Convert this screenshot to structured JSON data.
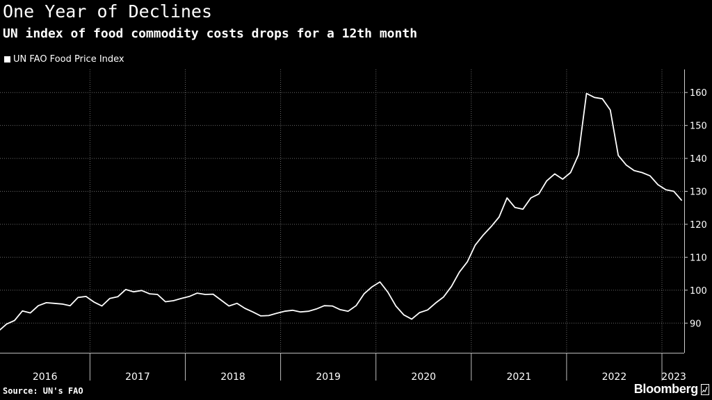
{
  "title": "One Year of Declines",
  "subtitle": "UN index of food commodity costs drops for a 12th month",
  "legend": {
    "label": "UN FAO Food Price Index",
    "color": "#ffffff"
  },
  "source": "Source: UN's FAO",
  "brand": "Bloomberg",
  "chart_data": {
    "type": "line",
    "title": "One Year of Declines",
    "subtitle": "UN index of food commodity costs drops for a 12th month",
    "xlabel": "",
    "ylabel": "",
    "yaxis_side": "right",
    "ylim": [
      81,
      167
    ],
    "yticks": [
      90,
      100,
      110,
      120,
      130,
      140,
      150,
      160
    ],
    "year_labels": [
      "2016",
      "2017",
      "2018",
      "2019",
      "2020",
      "2021",
      "2022",
      "2023"
    ],
    "start": "2016-01",
    "grid": true,
    "series": [
      {
        "name": "UN FAO Food Price Index",
        "color": "#ffffff",
        "values": [
          87.6,
          89.7,
          90.8,
          93.7,
          93.1,
          95.3,
          96.2,
          96.0,
          95.8,
          95.3,
          97.8,
          98.1,
          96.4,
          95.2,
          97.5,
          98.0,
          100.2,
          99.5,
          99.9,
          98.9,
          98.7,
          96.5,
          96.8,
          97.5,
          98.1,
          99.1,
          98.7,
          98.8,
          97.0,
          95.2,
          96.0,
          94.5,
          93.4,
          92.2,
          92.3,
          93.0,
          93.6,
          93.9,
          93.4,
          93.6,
          94.3,
          95.3,
          95.2,
          94.1,
          93.6,
          95.3,
          98.9,
          101.0,
          102.5,
          99.4,
          95.2,
          92.5,
          91.2,
          93.2,
          94.0,
          96.1,
          97.9,
          101.1,
          105.5,
          108.6,
          113.7,
          116.7,
          119.3,
          122.2,
          128.0,
          125.1,
          124.6,
          128.0,
          129.2,
          133.2,
          135.3,
          133.7,
          135.7,
          141.1,
          159.7,
          158.5,
          158.1,
          154.7,
          140.9,
          138.0,
          136.3,
          135.7,
          134.7,
          132.0,
          130.5,
          130.0,
          127.2
        ]
      }
    ]
  }
}
